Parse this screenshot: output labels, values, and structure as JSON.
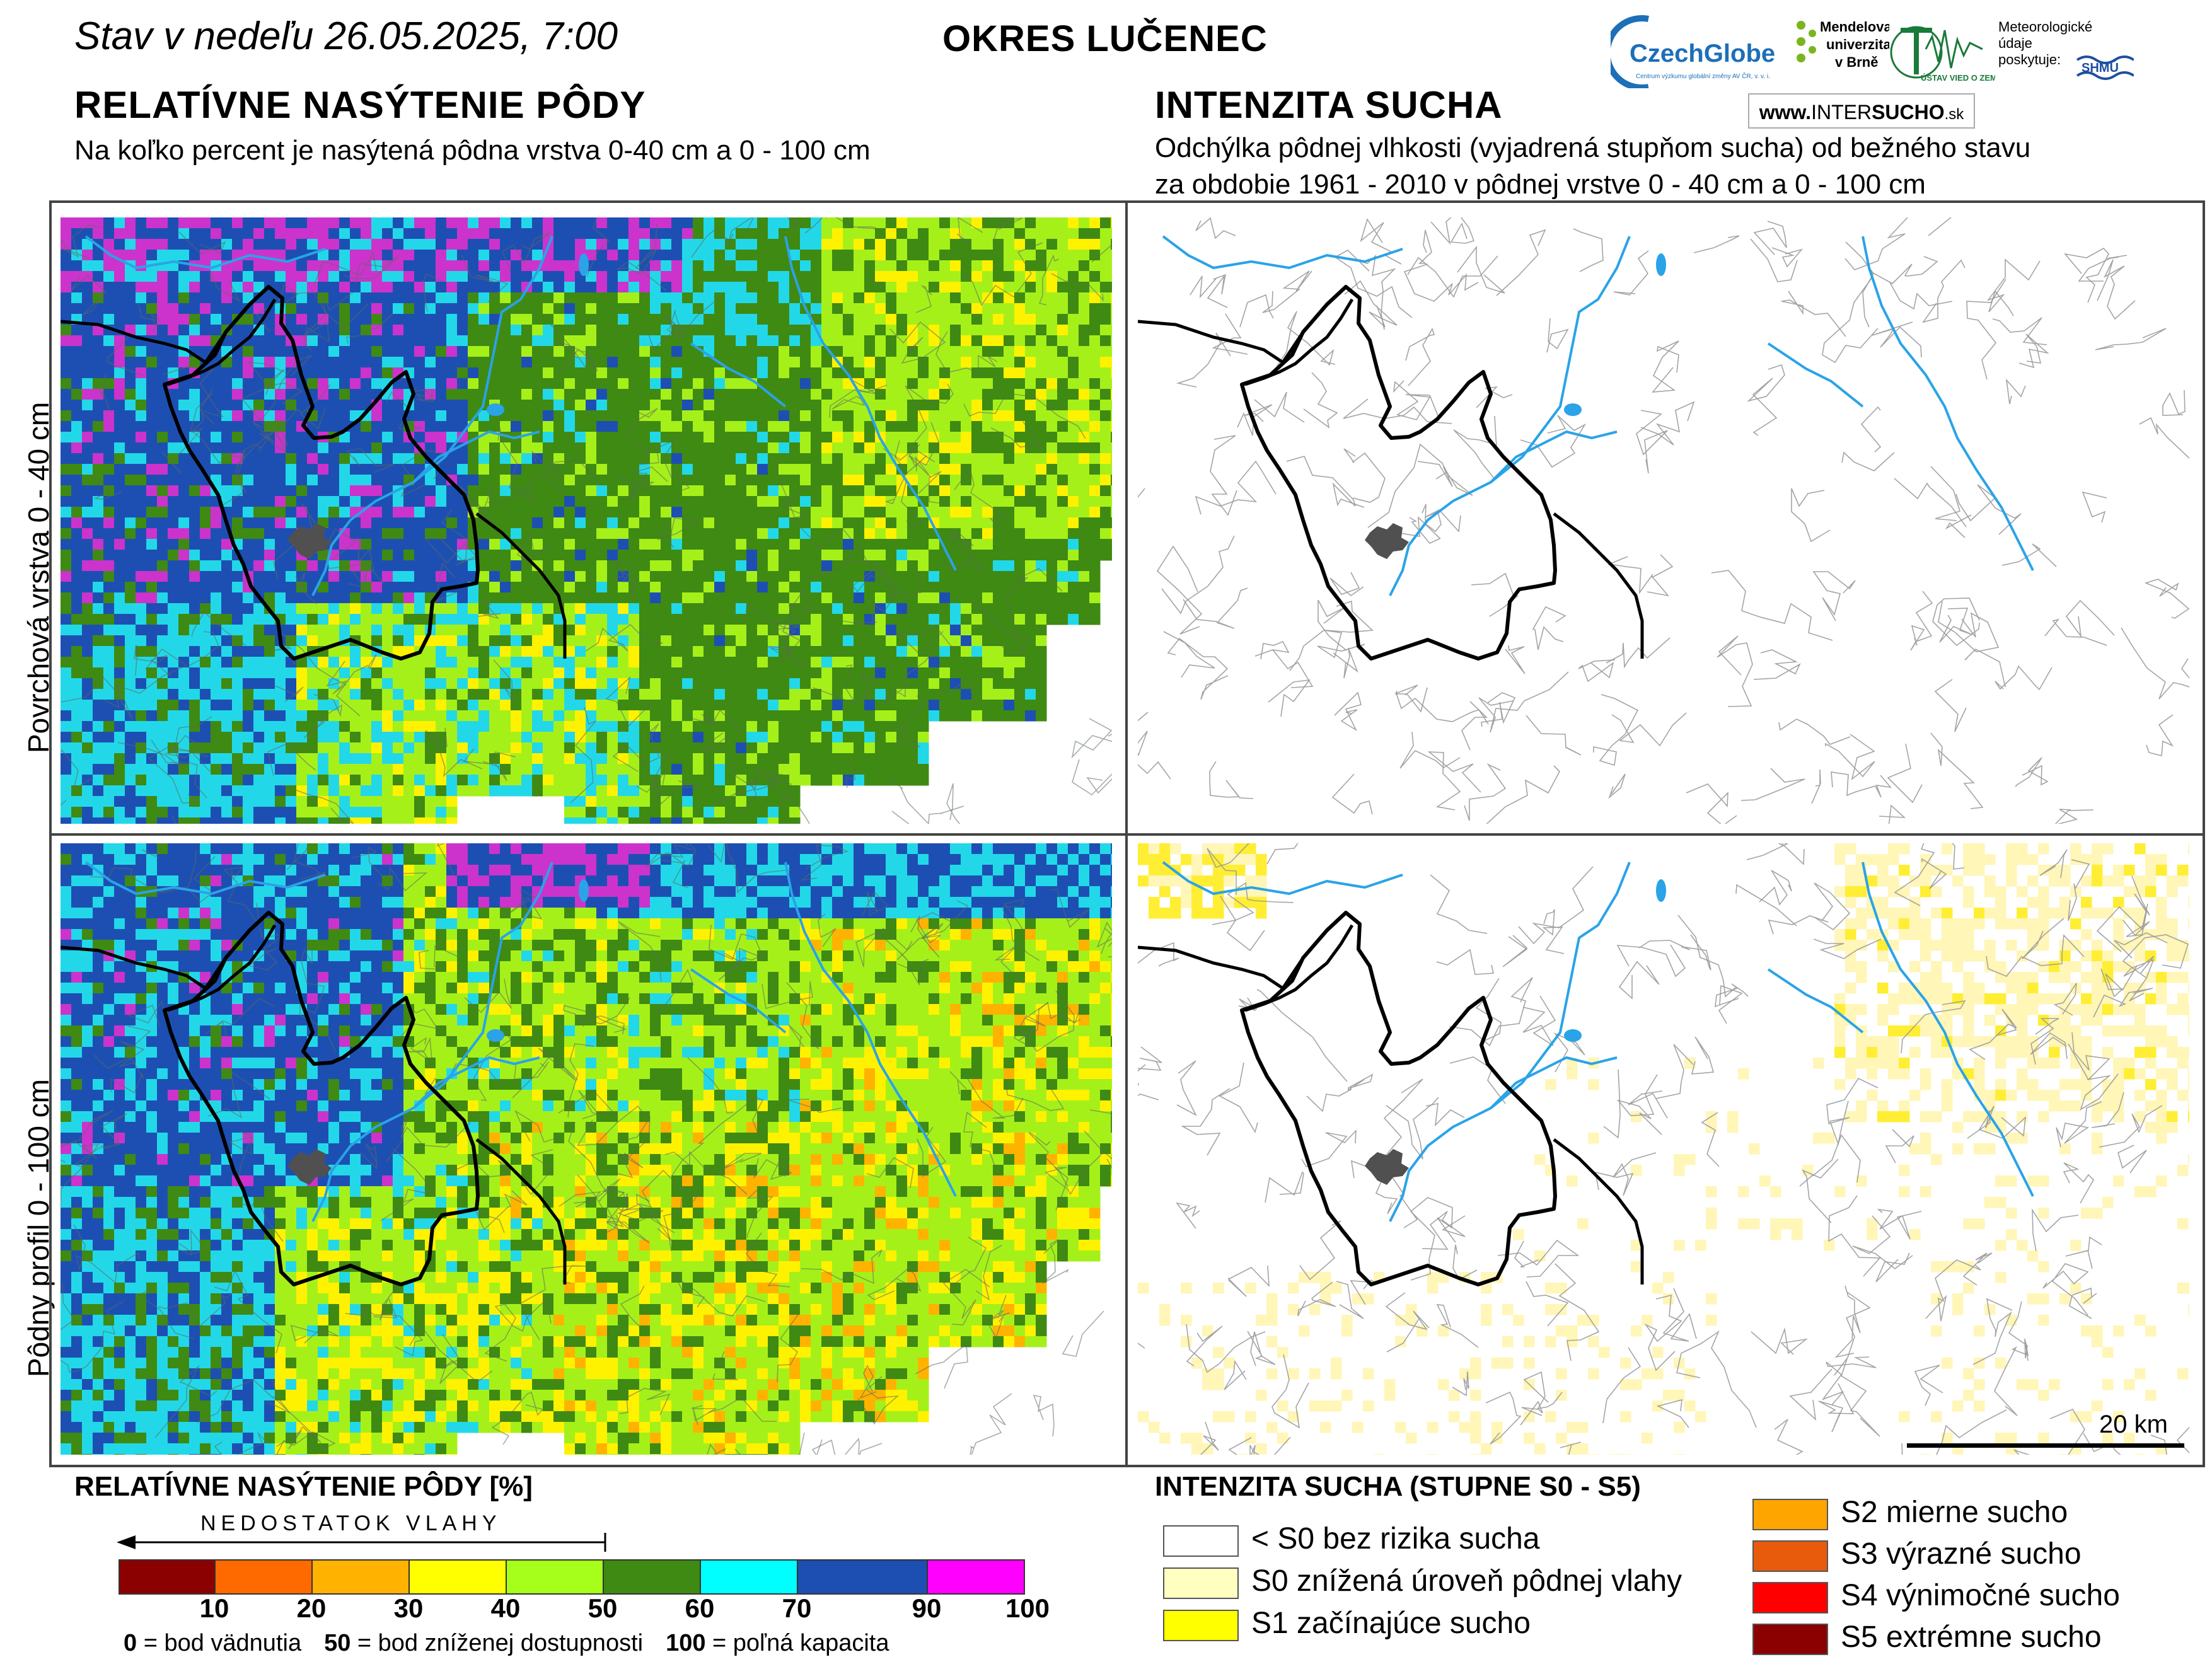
{
  "header": {
    "date_text": "Stav v nedeľu 26.05.2025, 7:00",
    "district": "OKRES  LUČENEC",
    "left_title": "RELATÍVNE NASÝTENIE PÔDY",
    "left_subtitle": "Na koľko percent je nasýtená pôdna vrstva 0-40 cm a 0 - 100 cm",
    "right_title": "INTENZITA SUCHA",
    "right_subtitle_1": "Odchýlka pôdnej vlhkosti (vyjadrená stupňom sucha) od bežného stavu",
    "right_subtitle_2": "za obdobie 1961 - 2010 v pôdnej vrstve 0 - 40 cm a 0 - 100 cm"
  },
  "logos": {
    "czechglobe": "CzechGlobe",
    "czechglobe_small": "Centrum výzkumu globální změny AV ČR, v. v. i.",
    "mendelu": [
      "Mendelova",
      "univerzita",
      "v Brně"
    ],
    "uvz": "ÚSTAV VIED O ZEMI",
    "shmu_note": [
      "Meteorologické",
      "údaje",
      "poskytuje:"
    ],
    "shmu": "SHMÚ",
    "intersucho_www": "www.",
    "intersucho_a": "INTER",
    "intersucho_b": "SUCHO",
    "intersucho_sk": ".sk"
  },
  "row_labels": {
    "top": "Povrchová vrstva 0 - 40 cm",
    "bottom": "Pôdny profil 0 - 100 cm"
  },
  "scale_bar": "20 km",
  "legend_saturation": {
    "title": "RELATÍVNE NASÝTENIE PÔDY [%]",
    "arrow_label": "NEDOSTATOK VLAHY",
    "colors": [
      "#8b0000",
      "#ff6a00",
      "#ffb300",
      "#ffff00",
      "#a6ff1a",
      "#3f8a12",
      "#00ffff",
      "#1d4fb3",
      "#ff00ff"
    ],
    "ticks": [
      "10",
      "20",
      "30",
      "40",
      "50",
      "60",
      "70",
      "90",
      "100"
    ],
    "note_0_val": "0",
    "note_0_txt": " = bod vädnutia",
    "note_50_val": "50",
    "note_50_txt": " = bod zníženej dostupnosti",
    "note_100_val": "100",
    "note_100_txt": " = poľná kapacita"
  },
  "legend_drought": {
    "title": "INTENZITA SUCHA (STUPNE S0 - S5)",
    "items": [
      {
        "label": "< S0 bez rizika sucha",
        "color": "#ffffff"
      },
      {
        "label": "S0 znížená úroveň pôdnej vlahy",
        "color": "#ffffc0"
      },
      {
        "label": "S1 začínajúce sucho",
        "color": "#ffff00"
      },
      {
        "label": "S2 mierne sucho",
        "color": "#ffa500"
      },
      {
        "label": "S3 výrazné sucho",
        "color": "#e85a0c"
      },
      {
        "label": "S4 výnimočné sucho",
        "color": "#ff0000"
      },
      {
        "label": "S5 extrémne sucho",
        "color": "#8b0000"
      }
    ]
  },
  "colors": {
    "river": "#2aa3e8",
    "district_border": "#000000",
    "town": "#505050"
  }
}
